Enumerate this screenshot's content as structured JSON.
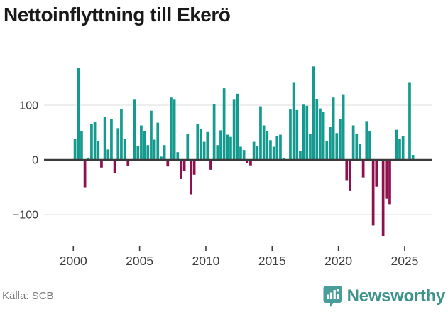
{
  "title": "Nettoinflyttning till Ekerö",
  "footer": {
    "source_label": "Källa: SCB",
    "brand": "Newsworthy"
  },
  "icons": {
    "logo": "newsworthy-bar-chart-badge"
  },
  "colors": {
    "positive_bar": "#149a8e",
    "negative_bar": "#8e104c",
    "gridline": "#e3e3e3",
    "zero_axis": "#3a3a3a",
    "axis_text": "#3d3d3d",
    "title_text": "#191919",
    "source_text": "#7a7a7a",
    "brand_teal": "#4a9e99",
    "brand_text": "#3e938d"
  },
  "chart_data": {
    "type": "bar",
    "title": "Nettoinflyttning till Ekerö",
    "xlabel": "",
    "ylabel": "",
    "frequency": "quarterly",
    "x_start_year": 2000,
    "x_tick_years": [
      2000,
      2005,
      2010,
      2015,
      2020,
      2025
    ],
    "x_tick_labels": [
      "2000",
      "2005",
      "2010",
      "2015",
      "2020",
      "2025"
    ],
    "y_ticks": [
      100,
      0,
      -100
    ],
    "ylim": [
      -160,
      185
    ],
    "grid": "horizontal",
    "legend": "none",
    "values": [
      38,
      168,
      53,
      -50,
      4,
      65,
      70,
      35,
      -14,
      78,
      19,
      75,
      -24,
      58,
      93,
      39,
      -11,
      0,
      110,
      26,
      63,
      52,
      27,
      90,
      37,
      68,
      6,
      27,
      -12,
      114,
      110,
      14,
      -35,
      -20,
      48,
      -63,
      -27,
      66,
      56,
      33,
      51,
      -18,
      102,
      27,
      54,
      131,
      46,
      42,
      110,
      121,
      24,
      18,
      -6,
      -10,
      33,
      25,
      98,
      63,
      53,
      36,
      24,
      43,
      46,
      4,
      0,
      92,
      141,
      91,
      16,
      101,
      99,
      48,
      171,
      111,
      94,
      87,
      35,
      61,
      114,
      49,
      75,
      120,
      -37,
      -57,
      63,
      48,
      29,
      -32,
      71,
      53,
      -120,
      -49,
      0,
      -139,
      -71,
      -81,
      0,
      55,
      38,
      43,
      0,
      141,
      9
    ]
  }
}
